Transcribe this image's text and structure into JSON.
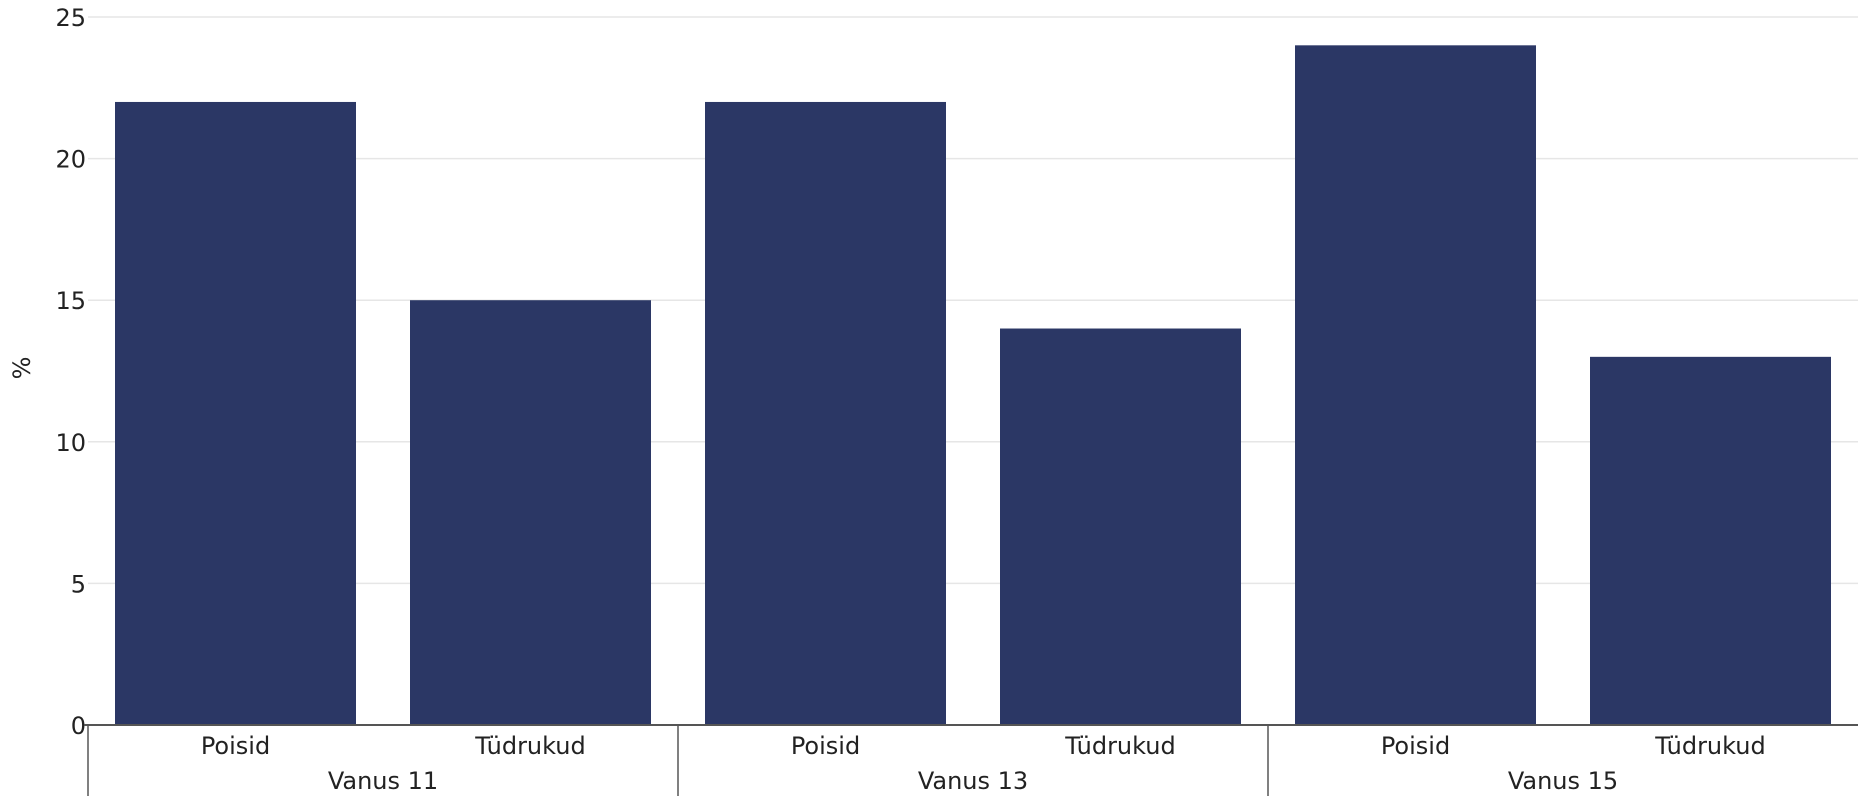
{
  "chart_data": {
    "type": "bar",
    "title": "",
    "ylabel": "%",
    "xlabel": "",
    "ylim": [
      0,
      25
    ],
    "yticks": [
      0,
      5,
      10,
      15,
      20,
      25
    ],
    "grid": true,
    "legend": "none",
    "bar_color": "#2b3765",
    "groups": [
      {
        "label": "Vanus 11",
        "categories": [
          "Poisid",
          "Tüdrukud"
        ],
        "values": [
          22,
          15
        ]
      },
      {
        "label": "Vanus 13",
        "categories": [
          "Poisid",
          "Tüdrukud"
        ],
        "values": [
          22,
          14
        ]
      },
      {
        "label": "Vanus 15",
        "categories": [
          "Poisid",
          "Tüdrukud"
        ],
        "values": [
          24,
          13
        ]
      }
    ]
  }
}
